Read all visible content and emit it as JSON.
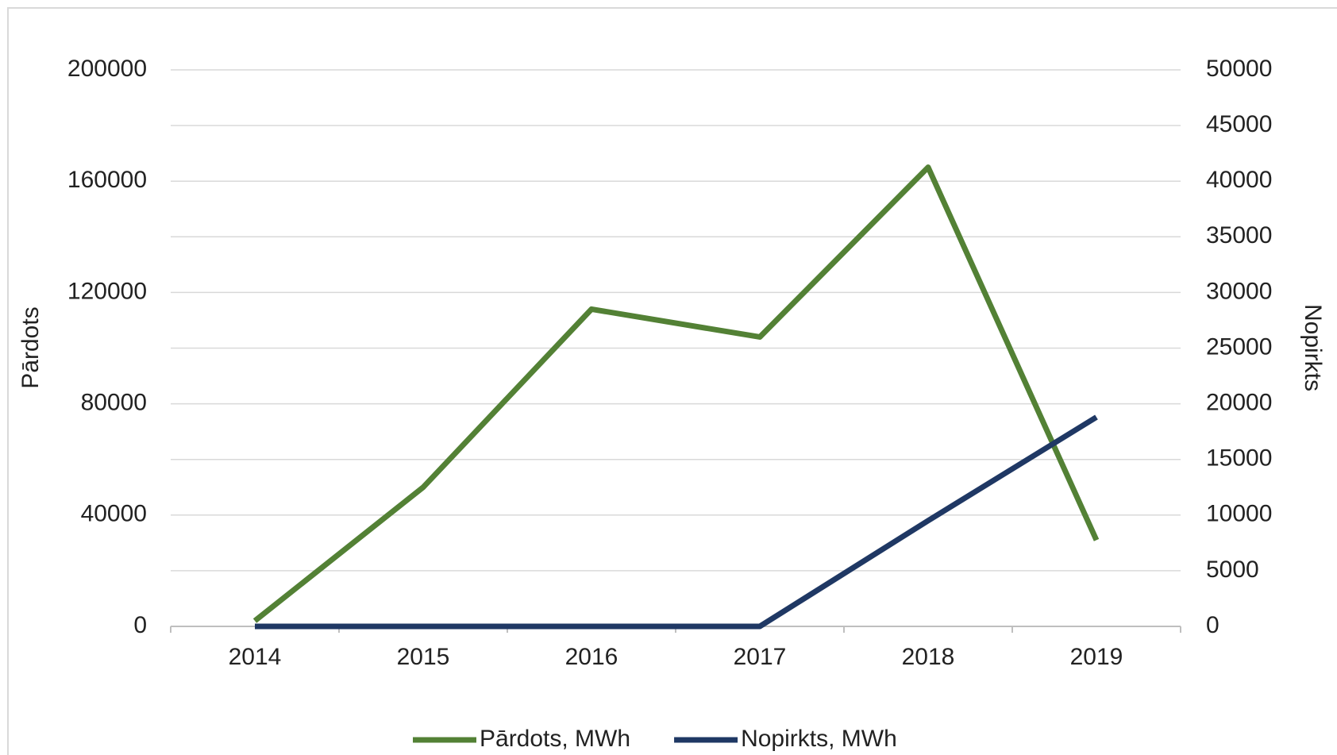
{
  "chart_data": {
    "type": "line",
    "categories": [
      "2014",
      "2015",
      "2016",
      "2017",
      "2018",
      "2019"
    ],
    "series": [
      {
        "name": "Pārdots, MWh",
        "color": "#538135",
        "values": [
          2000,
          50000,
          114000,
          104000,
          165000,
          31000
        ]
      },
      {
        "name": "Nopirkts, MWh",
        "color": "#1f3864",
        "axis": "y2",
        "values": [
          0,
          0,
          0,
          0,
          9500,
          18800
        ]
      }
    ],
    "ylabel": "Pārdots",
    "y2label": "Nopirkts",
    "ylim": [
      0,
      200000
    ],
    "yticks": [
      0,
      40000,
      80000,
      120000,
      160000,
      200000
    ],
    "y2lim": [
      0,
      50000
    ],
    "y2ticks": [
      0,
      5000,
      10000,
      15000,
      20000,
      25000,
      30000,
      35000,
      40000,
      45000,
      50000
    ],
    "grid": true,
    "legend": "bottom"
  }
}
